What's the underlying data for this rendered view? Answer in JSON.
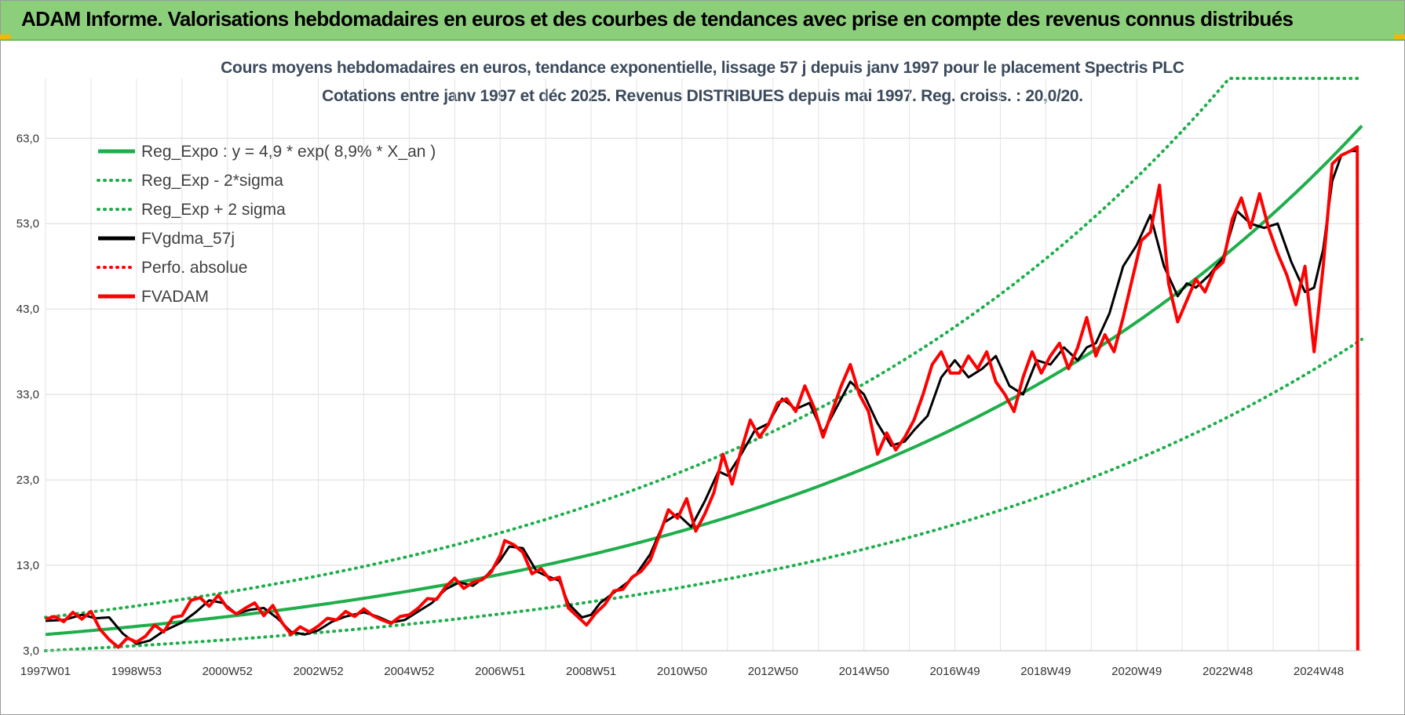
{
  "banner": {
    "title": "ADAM Informe. Valorisations hebdomadaires en euros et des courbes de tendances avec prise en compte des revenus connus distribués",
    "accent_color": "#8ccf7a"
  },
  "chart_data": {
    "type": "line",
    "title": "Cours moyens hebdomadaires en euros, tendance exponentielle, lissage 57 j depuis janv 1997 pour le placement Spectris PLC",
    "subtitle": "Cotations entre janv 1997 et déc 2025.  Revenus DISTRIBUES depuis mai 1997.  Reg. croiss. : 20,0/20.",
    "xlabel": "",
    "ylabel": "",
    "x_range": [
      1997.0,
      2025.95
    ],
    "ylim": [
      3,
      70
    ],
    "y_ticks": [
      3,
      13,
      23,
      33,
      43,
      53,
      63
    ],
    "y_tick_labels": [
      "3,0",
      "13,0",
      "23,0",
      "33,0",
      "43,0",
      "53,0",
      "63,0"
    ],
    "x_ticks": [
      {
        "label": "1997W01",
        "x": 1997.0
      },
      {
        "label": "1998W53",
        "x": 1999.0
      },
      {
        "label": "2000W52",
        "x": 2001.0
      },
      {
        "label": "2002W52",
        "x": 2003.0
      },
      {
        "label": "2004W52",
        "x": 2005.0
      },
      {
        "label": "2006W51",
        "x": 2007.0
      },
      {
        "label": "2008W51",
        "x": 2009.0
      },
      {
        "label": "2010W50",
        "x": 2011.0
      },
      {
        "label": "2012W50",
        "x": 2013.0
      },
      {
        "label": "2014W50",
        "x": 2015.0
      },
      {
        "label": "2016W49",
        "x": 2017.0
      },
      {
        "label": "2018W49",
        "x": 2019.0
      },
      {
        "label": "2020W49",
        "x": 2021.0
      },
      {
        "label": "2022W48",
        "x": 2023.0
      },
      {
        "label": "2024W48",
        "x": 2025.0
      }
    ],
    "grid": true,
    "legend_position": "top-left",
    "series": [
      {
        "name": "Reg_Expo : y = 4,9 * exp( 8,9% *  X_an )",
        "kind": "exp",
        "a": 4.9,
        "rate": 0.089,
        "color": "#1fae4b",
        "style": "solid"
      },
      {
        "name": "Reg_Exp - 2*sigma",
        "kind": "exp",
        "a": 3.0,
        "rate": 0.089,
        "color": "#1fae4b",
        "style": "dotted"
      },
      {
        "name": "Reg_Exp + 2 sigma",
        "kind": "exp",
        "a": 6.9,
        "rate": 0.089,
        "color": "#1fae4b",
        "style": "dotted",
        "cap": 70
      },
      {
        "name": "FVgdma_57j",
        "kind": "points",
        "color": "#000000",
        "style": "solid",
        "x": [
          1997.0,
          1997.4,
          1997.8,
          1998.1,
          1998.4,
          1998.7,
          1999.0,
          1999.3,
          1999.6,
          2000.0,
          2000.3,
          2000.6,
          2000.9,
          2001.2,
          2001.5,
          2001.8,
          2002.1,
          2002.4,
          2002.7,
          2003.0,
          2003.3,
          2003.6,
          2004.0,
          2004.3,
          2004.6,
          2004.9,
          2005.2,
          2005.5,
          2005.8,
          2006.1,
          2006.4,
          2006.7,
          2007.0,
          2007.2,
          2007.5,
          2007.8,
          2008.0,
          2008.3,
          2008.5,
          2008.8,
          2009.0,
          2009.2,
          2009.5,
          2009.8,
          2010.0,
          2010.3,
          2010.6,
          2010.9,
          2011.2,
          2011.5,
          2011.8,
          2012.0,
          2012.3,
          2012.6,
          2012.9,
          2013.2,
          2013.5,
          2013.8,
          2014.1,
          2014.4,
          2014.7,
          2015.0,
          2015.3,
          2015.6,
          2015.9,
          2016.1,
          2016.4,
          2016.7,
          2017.0,
          2017.3,
          2017.6,
          2017.9,
          2018.2,
          2018.5,
          2018.8,
          2019.1,
          2019.4,
          2019.7,
          2019.9,
          2020.1,
          2020.4,
          2020.7,
          2021.0,
          2021.3,
          2021.6,
          2021.9,
          2022.1,
          2022.3,
          2022.6,
          2022.9,
          2023.2,
          2023.5,
          2023.8,
          2024.1,
          2024.4,
          2024.7,
          2024.9,
          2025.1,
          2025.3,
          2025.5,
          2025.7,
          2025.85
        ],
        "y": [
          6.5,
          6.6,
          7.2,
          6.8,
          6.9,
          5.0,
          3.8,
          4.2,
          5.3,
          6.3,
          7.5,
          8.9,
          8.6,
          7.3,
          7.8,
          8.0,
          6.8,
          5.2,
          4.9,
          5.4,
          6.4,
          7.0,
          7.5,
          7.0,
          6.3,
          6.6,
          7.6,
          8.6,
          10.2,
          11.0,
          10.6,
          11.8,
          13.6,
          15.2,
          15.0,
          12.3,
          11.8,
          11.2,
          8.5,
          6.9,
          7.2,
          8.6,
          9.8,
          11.0,
          12.0,
          14.3,
          18.0,
          19.0,
          17.5,
          20.5,
          24.0,
          23.5,
          26.0,
          28.8,
          29.6,
          32.5,
          31.3,
          32.0,
          28.5,
          31.5,
          34.5,
          33.0,
          29.6,
          27.0,
          27.5,
          28.8,
          30.5,
          35.0,
          37.0,
          35.0,
          36.0,
          37.5,
          34.0,
          33.0,
          37.0,
          36.5,
          38.5,
          37.0,
          38.5,
          39.0,
          42.5,
          48.0,
          50.5,
          54.0,
          48.0,
          44.5,
          46.0,
          45.5,
          47.0,
          49.0,
          54.5,
          53.0,
          52.5,
          53.0,
          48.5,
          45.0,
          45.5,
          50.0,
          58.0,
          61.0,
          61.5,
          61.5
        ]
      },
      {
        "name": "Perfo. absolue",
        "kind": "none",
        "color": "#ff0000",
        "style": "dotted"
      },
      {
        "name": "FVADAM",
        "kind": "points",
        "color": "#ff0000",
        "style": "solid",
        "x": [
          1997.0,
          1997.2,
          1997.4,
          1997.6,
          1997.8,
          1998.0,
          1998.2,
          1998.4,
          1998.6,
          1998.8,
          1999.0,
          1999.2,
          1999.4,
          1999.6,
          1999.8,
          2000.0,
          2000.2,
          2000.4,
          2000.6,
          2000.8,
          2001.0,
          2001.2,
          2001.4,
          2001.6,
          2001.8,
          2002.0,
          2002.2,
          2002.4,
          2002.6,
          2002.8,
          2003.0,
          2003.2,
          2003.4,
          2003.6,
          2003.8,
          2004.0,
          2004.2,
          2004.4,
          2004.6,
          2004.8,
          2005.0,
          2005.2,
          2005.4,
          2005.6,
          2005.8,
          2006.0,
          2006.2,
          2006.4,
          2006.6,
          2006.8,
          2007.0,
          2007.1,
          2007.3,
          2007.5,
          2007.7,
          2007.9,
          2008.1,
          2008.3,
          2008.5,
          2008.7,
          2008.9,
          2009.1,
          2009.3,
          2009.5,
          2009.7,
          2009.9,
          2010.1,
          2010.3,
          2010.5,
          2010.7,
          2010.9,
          2011.1,
          2011.3,
          2011.5,
          2011.7,
          2011.9,
          2012.1,
          2012.3,
          2012.5,
          2012.7,
          2012.9,
          2013.1,
          2013.3,
          2013.5,
          2013.7,
          2013.9,
          2014.1,
          2014.3,
          2014.5,
          2014.7,
          2014.9,
          2015.1,
          2015.3,
          2015.5,
          2015.7,
          2015.9,
          2016.1,
          2016.3,
          2016.5,
          2016.7,
          2016.9,
          2017.1,
          2017.3,
          2017.5,
          2017.7,
          2017.9,
          2018.1,
          2018.3,
          2018.5,
          2018.7,
          2018.9,
          2019.1,
          2019.3,
          2019.5,
          2019.7,
          2019.9,
          2020.1,
          2020.3,
          2020.5,
          2020.7,
          2020.9,
          2021.1,
          2021.3,
          2021.5,
          2021.7,
          2021.9,
          2022.1,
          2022.3,
          2022.5,
          2022.7,
          2022.9,
          2023.1,
          2023.3,
          2023.5,
          2023.7,
          2023.9,
          2024.1,
          2024.3,
          2024.5,
          2024.7,
          2024.9,
          2025.1,
          2025.3,
          2025.5,
          2025.7,
          2025.85,
          2025.86
        ],
        "y": [
          6.7,
          7.0,
          6.4,
          7.5,
          6.7,
          7.6,
          5.5,
          4.3,
          3.4,
          4.5,
          4.0,
          4.7,
          6.0,
          5.2,
          6.9,
          7.1,
          8.9,
          9.2,
          8.2,
          9.5,
          8.0,
          7.3,
          8.0,
          8.6,
          7.1,
          8.3,
          6.3,
          4.9,
          5.8,
          5.2,
          5.9,
          6.8,
          6.6,
          7.6,
          7.0,
          7.9,
          7.1,
          6.6,
          6.2,
          7.0,
          7.2,
          8.0,
          9.1,
          9.0,
          10.5,
          11.5,
          10.3,
          11.0,
          11.3,
          12.2,
          14.2,
          15.9,
          15.4,
          14.5,
          12.0,
          12.6,
          11.3,
          11.6,
          8.0,
          7.0,
          6.0,
          7.4,
          8.4,
          10.0,
          10.2,
          11.6,
          12.3,
          13.6,
          16.5,
          19.5,
          18.5,
          20.8,
          17.0,
          19.0,
          21.5,
          26.0,
          22.5,
          26.5,
          30.0,
          28.0,
          29.5,
          32.0,
          32.5,
          31.0,
          34.0,
          31.5,
          28.0,
          31.0,
          34.0,
          36.5,
          33.0,
          31.0,
          26.0,
          28.5,
          26.5,
          28.0,
          30.0,
          33.0,
          36.5,
          38.0,
          35.5,
          35.5,
          37.5,
          36.0,
          38.0,
          34.5,
          33.0,
          31.0,
          35.0,
          38.0,
          35.5,
          37.5,
          39.0,
          36.0,
          38.5,
          42.0,
          37.5,
          40.0,
          38.0,
          42.0,
          46.5,
          51.0,
          52.0,
          57.5,
          46.0,
          41.5,
          44.0,
          46.5,
          45.0,
          47.5,
          48.5,
          53.5,
          56.0,
          52.5,
          56.5,
          52.5,
          49.5,
          47.0,
          43.5,
          48.0,
          38.0,
          48.0,
          60.0,
          61.0,
          61.5,
          62.0,
          3.0
        ]
      }
    ]
  }
}
